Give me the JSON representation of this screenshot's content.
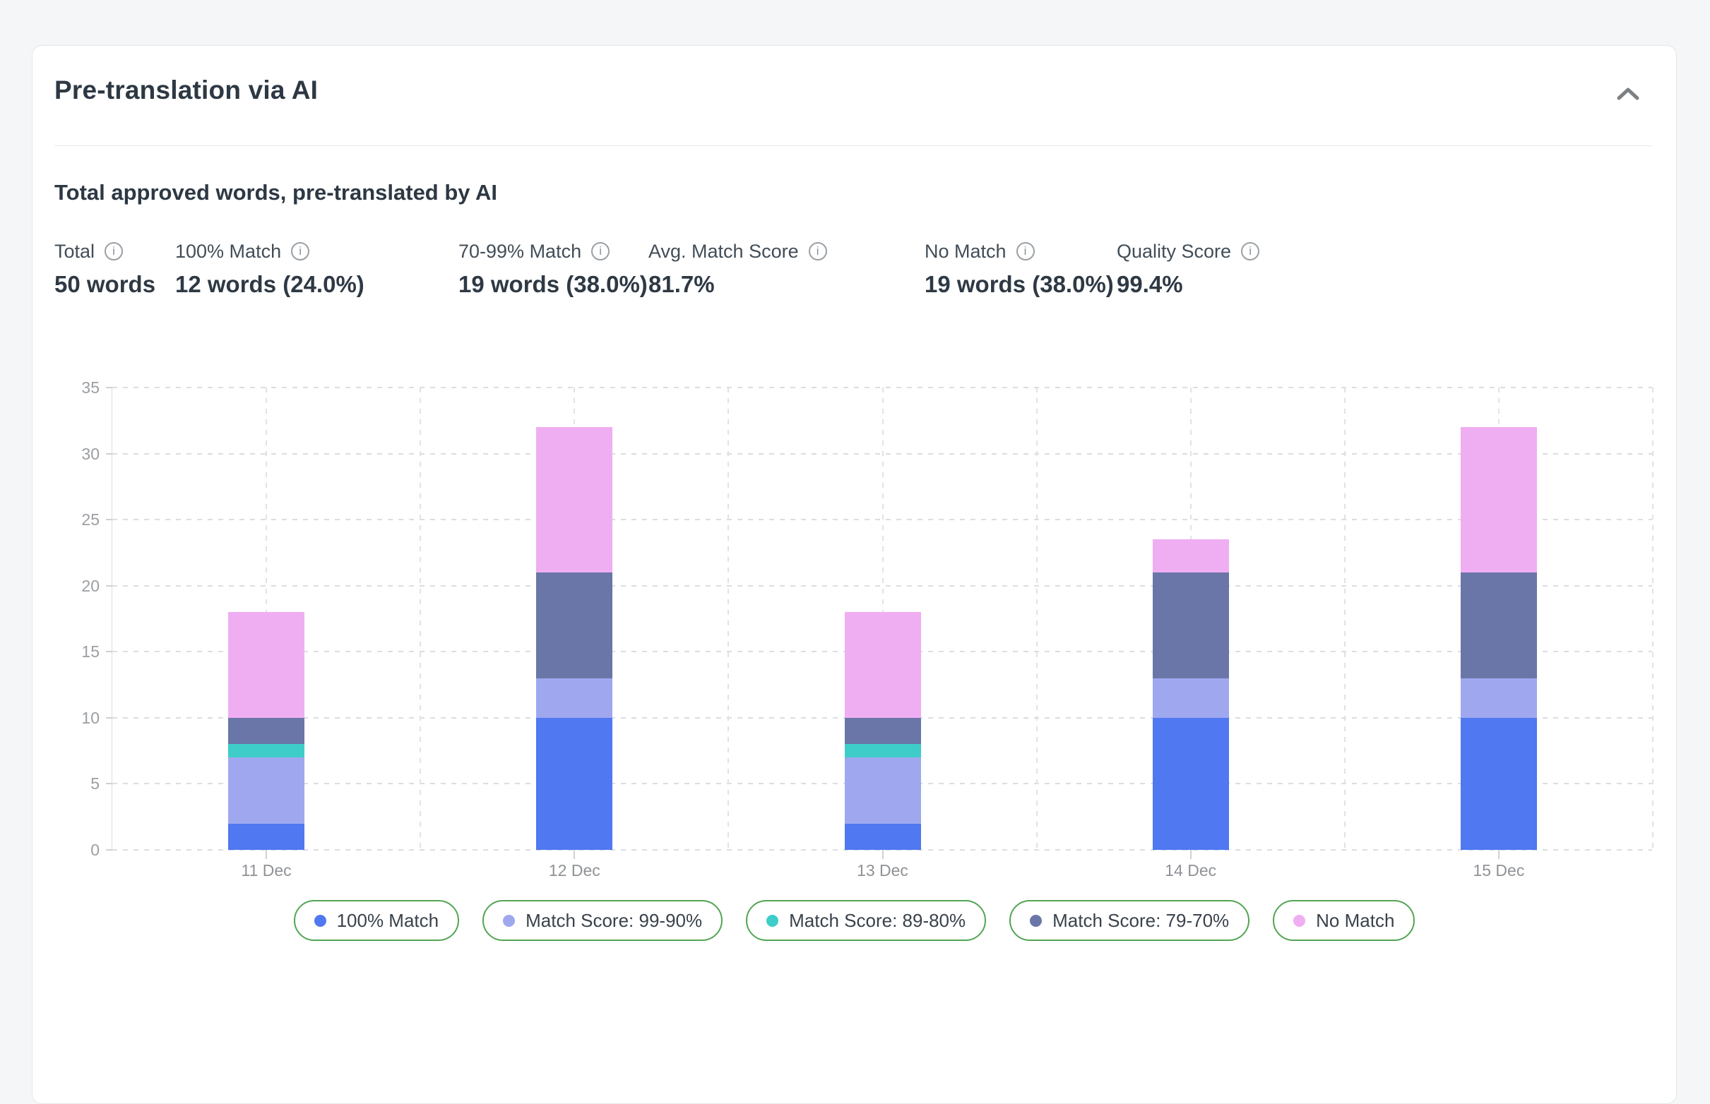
{
  "card": {
    "title": "Pre-translation via AI",
    "section_heading": "Total approved words, pre-translated by AI"
  },
  "icons": {
    "info_glyph": "i"
  },
  "stats": [
    {
      "label": "Total",
      "value": "50 words"
    },
    {
      "label": "100% Match",
      "value": "12 words (24.0%)"
    },
    {
      "label": "70-99% Match",
      "value": "19 words (38.0%)"
    },
    {
      "label": "Avg. Match Score",
      "value": "81.7%"
    },
    {
      "label": "No Match",
      "value": "19 words (38.0%)"
    },
    {
      "label": "Quality Score",
      "value": "99.4%"
    }
  ],
  "chart_data": {
    "type": "bar",
    "stacked": true,
    "title": "Total approved words, pre-translated by AI",
    "xlabel": "",
    "ylabel": "",
    "ylim": [
      0,
      35
    ],
    "yticks": [
      0,
      5,
      10,
      15,
      20,
      25,
      30,
      35
    ],
    "grid": "dashed horizontal and vertical",
    "legend_position": "bottom",
    "categories": [
      "11 Dec",
      "12 Dec",
      "13 Dec",
      "14 Dec",
      "15 Dec"
    ],
    "series": [
      {
        "name": "100% Match",
        "color": "#4f78f1",
        "values": [
          2,
          10,
          2,
          10,
          10
        ]
      },
      {
        "name": "Match Score: 99-90%",
        "color": "#9fa8ef",
        "values": [
          5,
          3,
          5,
          3,
          3
        ]
      },
      {
        "name": "Match Score: 89-80%",
        "color": "#3ecdc9",
        "values": [
          1,
          0,
          1,
          0,
          0
        ]
      },
      {
        "name": "Match Score: 79-70%",
        "color": "#6a76a7",
        "values": [
          2,
          8,
          2,
          8,
          8
        ]
      },
      {
        "name": "No Match",
        "color": "#f0aef2",
        "values": [
          8,
          11,
          8,
          2.5,
          11
        ]
      }
    ],
    "bar_totals": [
      18,
      32,
      18,
      23.5,
      32
    ],
    "colors": {
      "legend_border": "#52a553",
      "grid": "#dbdddf",
      "axis_text": "#9b9ea2"
    }
  }
}
